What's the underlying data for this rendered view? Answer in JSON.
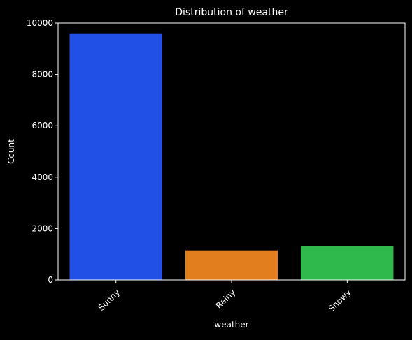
{
  "chart_data": {
    "type": "bar",
    "title": "Distribution of weather",
    "xlabel": "weather",
    "ylabel": "Count",
    "categories": [
      "Sunny",
      "Rainy",
      "Snowy"
    ],
    "values": [
      9600,
      1150,
      1330
    ],
    "colors": [
      "#2150e6",
      "#e37e1f",
      "#2fb84b"
    ],
    "ylim": [
      0,
      10000
    ],
    "yticks": [
      0,
      2000,
      4000,
      6000,
      8000,
      10000
    ],
    "ytick_labels": [
      "0",
      "2000",
      "4000",
      "6000",
      "8000",
      "10000"
    ],
    "grid": false,
    "background": "#000000",
    "foreground": "#ffffff"
  }
}
